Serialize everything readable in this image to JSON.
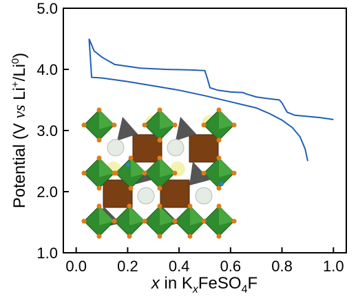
{
  "chart_data": {
    "type": "line",
    "xlabel": [
      "x",
      " in K",
      "x",
      "FeSO",
      "4",
      "F"
    ],
    "ylabel": [
      "Potential (V ",
      "vs",
      " Li",
      "+",
      "/Li",
      "0",
      ")"
    ],
    "xlim": [
      -0.05,
      1.05
    ],
    "ylim": [
      1.0,
      5.0
    ],
    "xticks": [
      {
        "value": 0,
        "label": "0.0"
      },
      0.2,
      0.4,
      0.6,
      0.8,
      {
        "value": 1,
        "label": "1.0"
      }
    ],
    "yticks": [
      {
        "value": 1,
        "label": "1.0"
      },
      {
        "value": 2,
        "label": "2.0"
      },
      {
        "value": 3,
        "label": "3.0"
      },
      {
        "value": 4,
        "label": "4.0"
      },
      {
        "value": 5,
        "label": "5.0"
      }
    ],
    "series": [
      {
        "color": "#1f5fb4",
        "x": [
          1.0,
          0.95,
          0.9,
          0.85,
          0.82,
          0.8,
          0.79,
          0.75,
          0.7,
          0.66,
          0.65,
          0.6,
          0.55,
          0.52,
          0.51,
          0.5,
          0.45,
          0.35,
          0.25,
          0.15,
          0.1,
          0.07,
          0.05,
          0.055,
          0.06,
          0.1,
          0.2,
          0.3,
          0.4,
          0.5,
          0.6,
          0.7,
          0.75,
          0.8,
          0.84,
          0.87,
          0.89,
          0.9
        ],
        "y": [
          3.18,
          3.21,
          3.23,
          3.25,
          3.3,
          3.45,
          3.5,
          3.52,
          3.55,
          3.6,
          3.62,
          3.63,
          3.66,
          3.7,
          3.85,
          3.98,
          3.99,
          4.0,
          4.02,
          4.08,
          4.2,
          4.3,
          4.5,
          4.2,
          3.87,
          3.86,
          3.8,
          3.73,
          3.66,
          3.57,
          3.47,
          3.37,
          3.28,
          3.17,
          3.05,
          2.9,
          2.7,
          2.5
        ]
      }
    ]
  }
}
